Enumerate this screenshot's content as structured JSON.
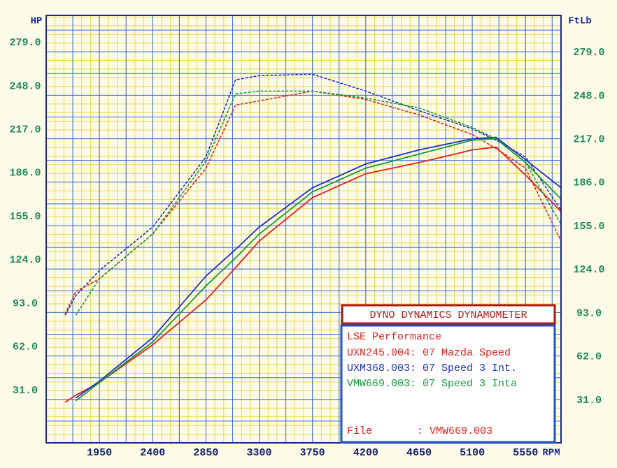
{
  "chart_data": {
    "type": "line",
    "y_label": "HP",
    "y2_label": "FtLb",
    "x_label": "RPM",
    "x": [
      1660,
      1750,
      1950,
      2400,
      2850,
      3100,
      3300,
      3750,
      4200,
      4650,
      5100,
      5300,
      5550,
      5850
    ],
    "xlim": [
      1500,
      5850
    ],
    "xticks": [
      1950,
      2400,
      2850,
      3300,
      3750,
      4200,
      4650,
      5100,
      5550
    ],
    "ylim": [
      0,
      305
    ],
    "yticks": [
      {
        "value": 31,
        "label": "31.0"
      },
      {
        "value": 62,
        "label": "62.0"
      },
      {
        "value": 93,
        "label": "93.0"
      },
      {
        "value": 124,
        "label": "124.0"
      },
      {
        "value": 155,
        "label": "155.0"
      },
      {
        "value": 186,
        "label": "186.0"
      },
      {
        "value": 217,
        "label": "217.0"
      },
      {
        "value": 248,
        "label": "248.0"
      },
      {
        "value": 279,
        "label": "279.0"
      }
    ],
    "y2lim": [
      0,
      305
    ],
    "y2ticks": [
      {
        "value": 31,
        "label": "31.0"
      },
      {
        "value": 62,
        "label": "62.0"
      },
      {
        "value": 93,
        "label": "93.0"
      },
      {
        "value": 124,
        "label": "124.0"
      },
      {
        "value": 155,
        "label": "155.0"
      },
      {
        "value": 186,
        "label": "186.0"
      },
      {
        "value": 217,
        "label": "217.0"
      },
      {
        "value": 248,
        "label": "248.0"
      },
      {
        "value": 279,
        "label": "279.0"
      }
    ],
    "grid": true,
    "legend_title": "DYNO DYNAMICS DYNAMOMETER",
    "legend_subtitle": "LSE Performance",
    "file_label": "File",
    "file_value": ": VMW669.003",
    "series": [
      {
        "name": "UXN245.004: 07 Mazda Speed",
        "color": "#e8201c",
        "values": [
          29,
          34,
          43,
          70,
          102,
          125,
          144,
          175,
          192,
          200,
          209,
          211,
          191,
          165
        ],
        "torque": [
          92,
          108,
          117,
          149,
          196,
          241,
          244,
          251,
          245,
          234,
          220,
          210,
          196,
          144
        ]
      },
      {
        "name": "UXM368.003: 07 Speed 3 Int.",
        "color": "#1c2fc8",
        "values": [
          null,
          32,
          44,
          75,
          119,
          138,
          154,
          182,
          199,
          209,
          217,
          218,
          202,
          182
        ],
        "torque": [
          91,
          105,
          123,
          154,
          204,
          259,
          262,
          263,
          251,
          237,
          224,
          216,
          204,
          166
        ]
      },
      {
        "name": "VMW669.003: 07 Speed 3 Inta",
        "color": "#179a3a",
        "values": [
          null,
          30,
          43,
          72,
          112,
          132,
          149,
          179,
          196,
          206,
          216,
          217,
          200,
          174
        ],
        "torque": [
          null,
          91,
          117,
          149,
          201,
          249,
          251,
          251,
          246,
          239,
          225,
          217,
          200,
          156
        ]
      }
    ]
  }
}
